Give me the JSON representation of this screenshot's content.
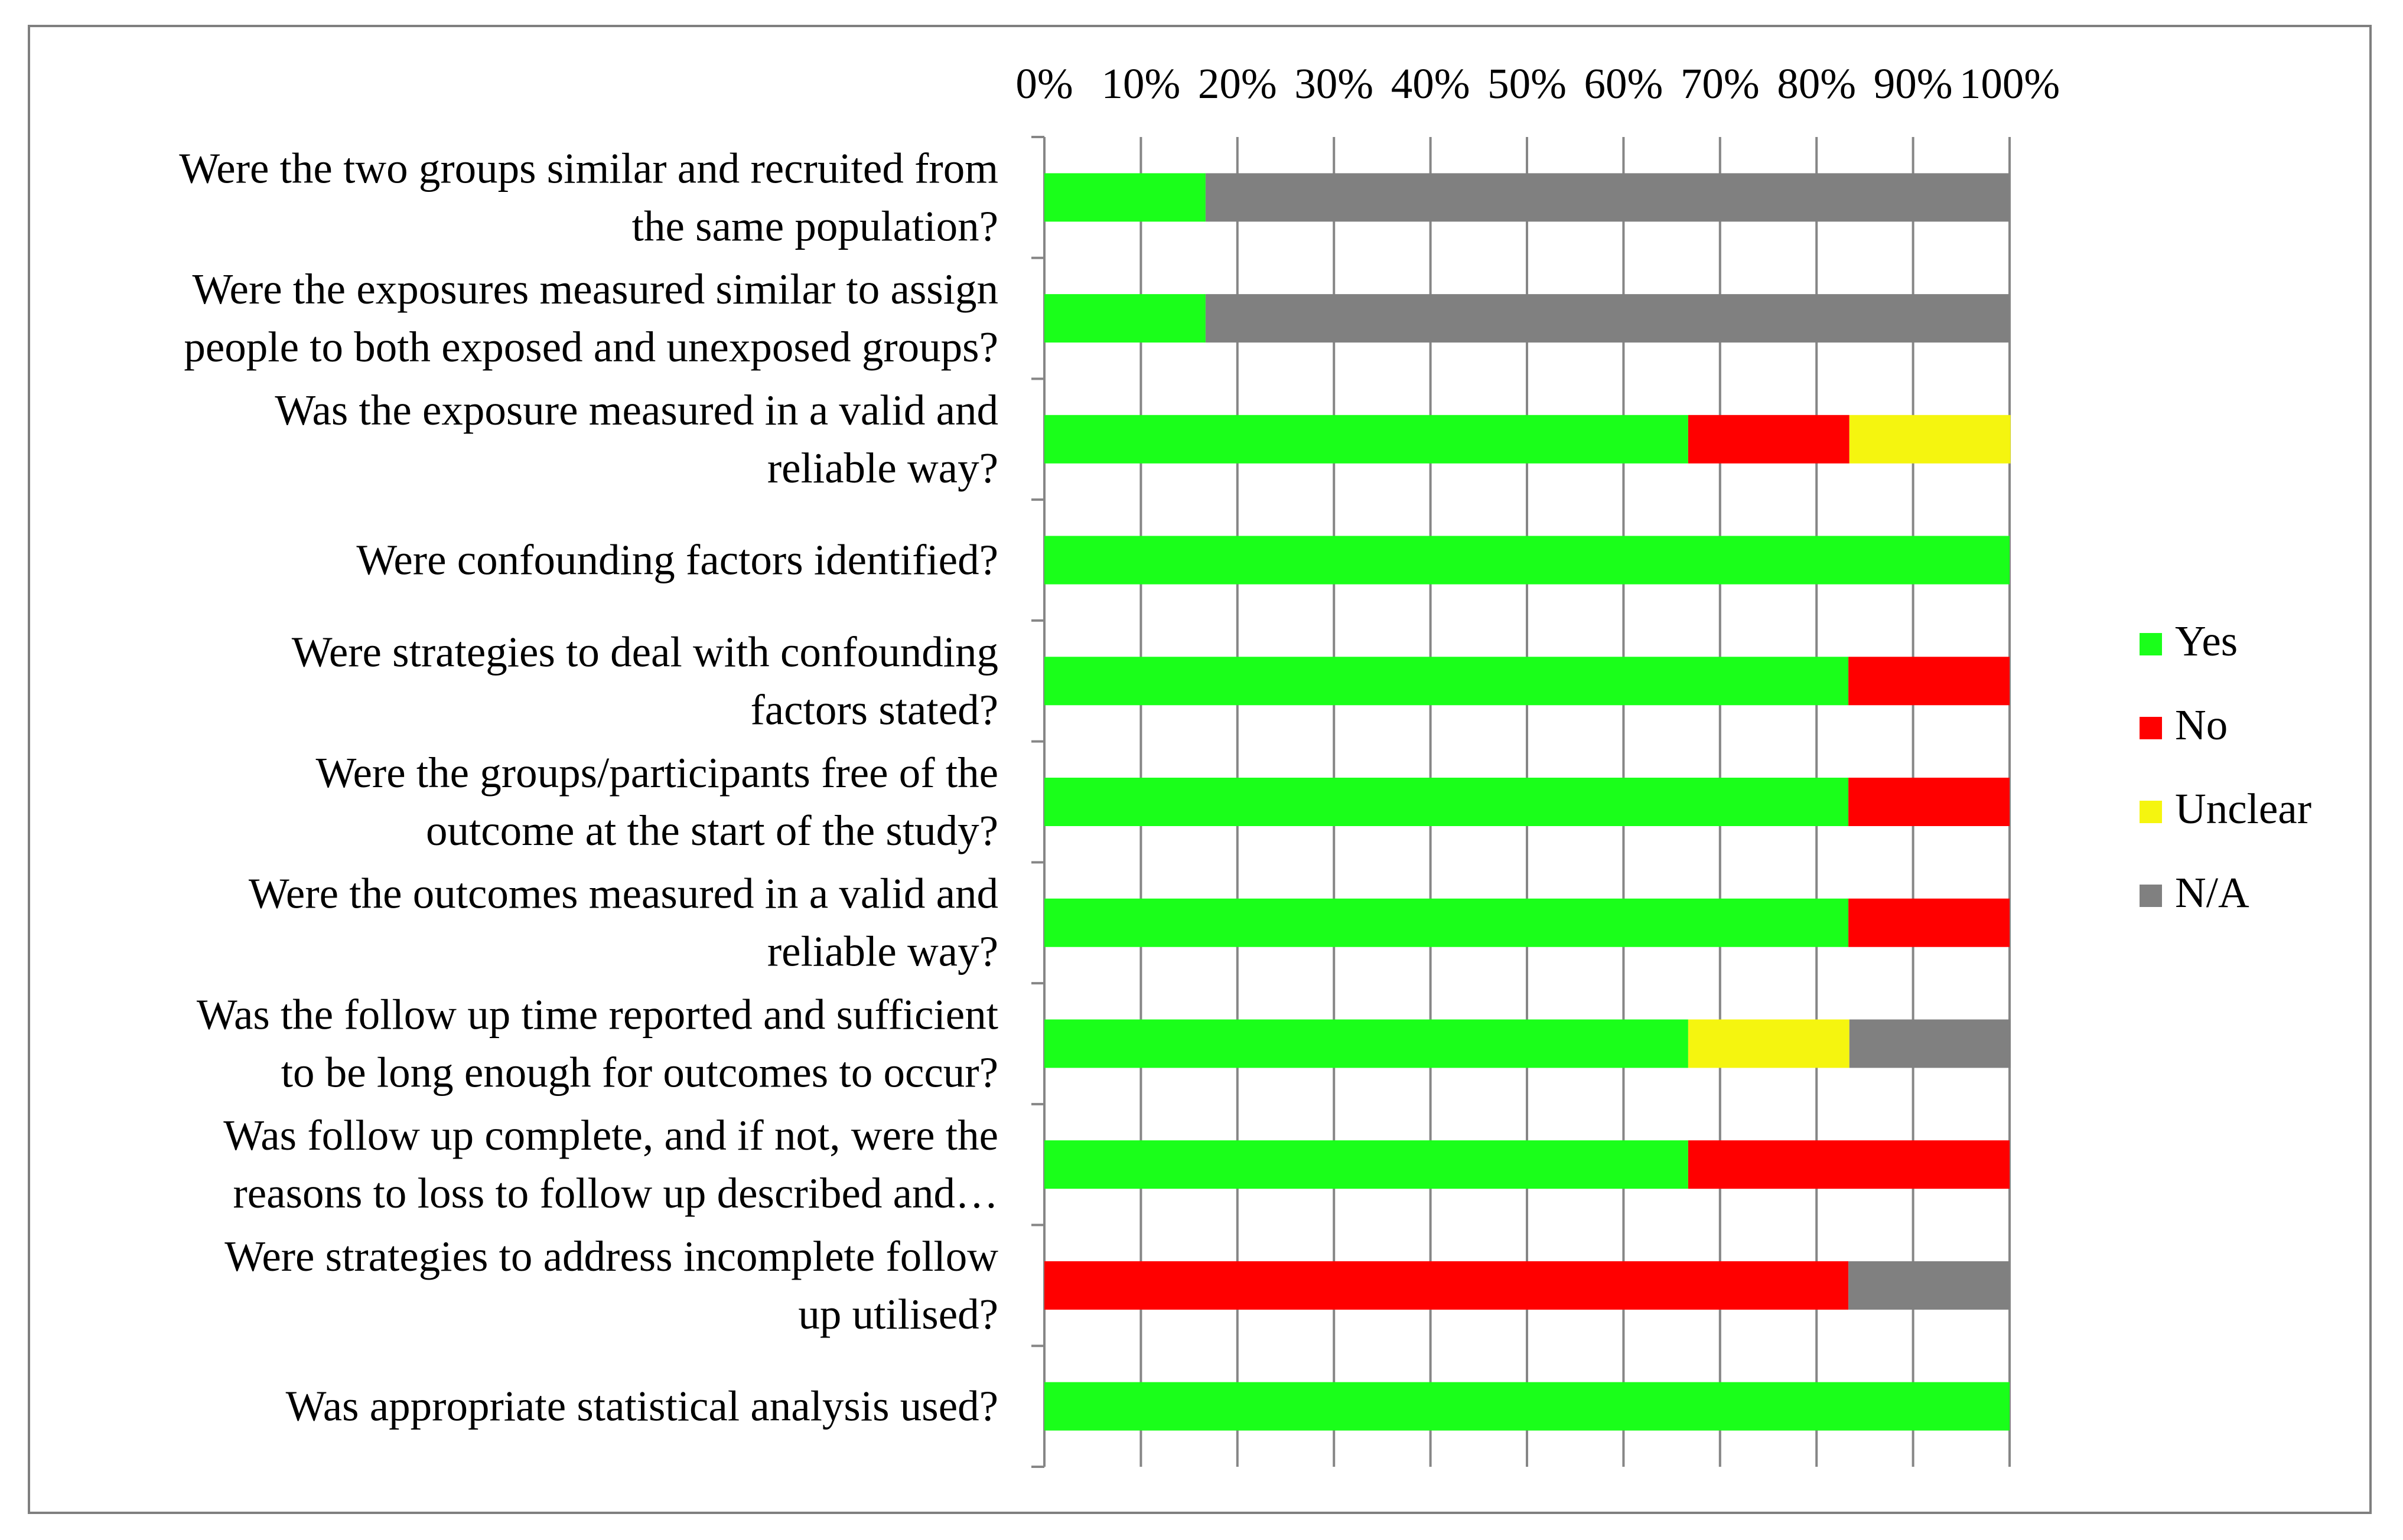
{
  "chart_data": {
    "type": "bar",
    "orientation": "horizontal",
    "stacked": "percent",
    "title": "",
    "xlabel": "",
    "ylabel": "",
    "xlim": [
      0,
      100
    ],
    "x_ticks": [
      "0%",
      "10%",
      "20%",
      "30%",
      "40%",
      "50%",
      "60%",
      "70%",
      "80%",
      "90%",
      "100%"
    ],
    "grid": "vertical major gridlines",
    "legend_position": "right",
    "categories": [
      [
        "Were the two groups similar and recruited from",
        "the same population?"
      ],
      [
        "Were the exposures measured similar to assign",
        "people to both exposed and unexposed groups?"
      ],
      [
        "Was the exposure measured in a valid and",
        "reliable way?"
      ],
      [
        "Were confounding factors identified?"
      ],
      [
        "Were strategies to deal with confounding",
        "factors stated?"
      ],
      [
        "Were the groups/participants free of the",
        "outcome at the start of the study?"
      ],
      [
        "Were the outcomes measured in a valid and",
        "reliable way?"
      ],
      [
        "Was the follow up time reported and sufficient",
        "to be long enough for outcomes to occur?"
      ],
      [
        "Was follow up complete, and if not, were the",
        "reasons to loss to follow up described and…"
      ],
      [
        "Were strategies to address incomplete follow",
        "up utilised?"
      ],
      [
        "Was appropriate statistical analysis used?"
      ]
    ],
    "series": [
      {
        "name": "Yes",
        "color": "#1aff1a",
        "values": [
          16.7,
          16.7,
          66.7,
          100,
          83.3,
          83.3,
          83.3,
          66.7,
          66.7,
          0,
          100
        ]
      },
      {
        "name": "No",
        "color": "#ff0000",
        "values": [
          0,
          0,
          16.7,
          0,
          16.7,
          16.7,
          16.7,
          0,
          33.3,
          83.3,
          0
        ]
      },
      {
        "name": "Unclear",
        "color": "#f5f50f",
        "values": [
          0,
          0,
          16.7,
          0,
          0,
          0,
          0,
          16.7,
          0,
          0,
          0
        ]
      },
      {
        "name": "N/A",
        "color": "#808080",
        "values": [
          83.3,
          83.3,
          0,
          0,
          0,
          0,
          0,
          16.7,
          0,
          16.7,
          0
        ]
      }
    ]
  }
}
